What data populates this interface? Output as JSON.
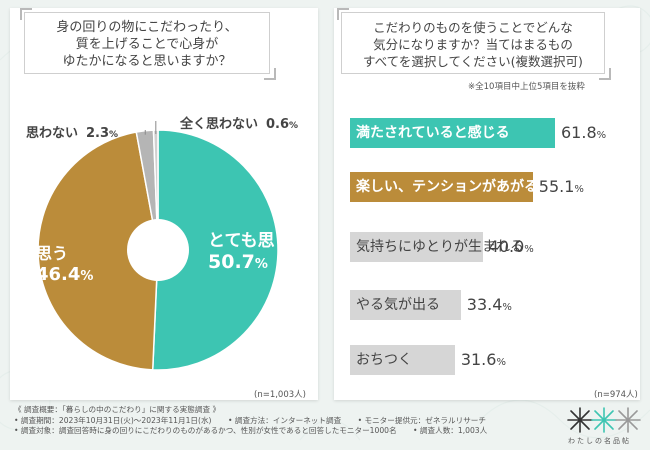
{
  "colors": {
    "teal": "#3dc5b2",
    "brown": "#bb8c3a",
    "gray": "#b5b5b5",
    "light_gray": "#d0d0d0",
    "background": "#eef3f1"
  },
  "left": {
    "question_lines": [
      "身の回りの物にこだわったり、",
      "質を上げることで心身が",
      "ゆたかになると思いますか？"
    ],
    "n_label": "(n=1,003人)"
  },
  "right": {
    "question_lines": [
      "こだわりのものを使うことでどんな",
      "気分になりますか？当てはまるもの",
      "すべてを選択してください(複数選択可)"
    ],
    "note": "※全10項目中上位5項目を抜粋",
    "n_label": "(n=974人)"
  },
  "chart_data": [
    {
      "type": "pie",
      "title": "身の回りの物にこだわったり、質を上げることで心身がゆたかになると思いますか？",
      "categories": [
        "とても思う",
        "思う",
        "思わない",
        "全く思わない"
      ],
      "values": [
        50.7,
        46.4,
        2.3,
        0.6
      ],
      "unit": "%",
      "colors": [
        "#3dc5b2",
        "#bb8c3a",
        "#b5b5b5",
        "#d0d0d0"
      ],
      "n": "(n=1,003人)"
    },
    {
      "type": "bar",
      "title": "こだわりのものを使うことでどんな気分になりますか？当てはまるものすべてを選択してください(複数選択可)",
      "categories": [
        "満たされていると感じる",
        "楽しい、テンションがあがる",
        "気持ちにゆとりが生まれる",
        "やる気が出る",
        "おちつく"
      ],
      "values": [
        61.8,
        55.1,
        40.0,
        33.4,
        31.6
      ],
      "unit": "%",
      "colors": [
        "#3dc5b2",
        "#bb8c3a",
        "#d6d6d6",
        "#d6d6d6",
        "#d6d6d6"
      ],
      "n": "(n=974人)"
    }
  ],
  "footer": {
    "lines": [
      [
        "《 調査概要：「暮らしの中のこだわり」に関する実態調査 》"
      ],
      [
        "• 調査期間：2023年10月31日(火)〜2023年11月1日(水)",
        "• 調査方法：インターネット調査",
        "• モニター提供元：ゼネラルリサーチ"
      ],
      [
        "• 調査対象：調査回答時に身の回りにこだわりのものがあるかつ、性別が女性であると回答したモニター1000名",
        "• 調査人数：1,003人"
      ]
    ]
  },
  "brand": {
    "logo_text": "わたしの名品帖"
  }
}
